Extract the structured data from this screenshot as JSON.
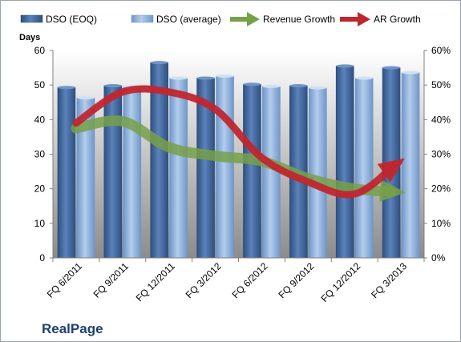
{
  "chart_data": {
    "type": "bar",
    "title": "",
    "company": "RealPage",
    "ylabel": "Days",
    "ylim": [
      0,
      60
    ],
    "y_ticks": [
      "0",
      "10",
      "20",
      "30",
      "40",
      "50",
      "60"
    ],
    "y2lim": [
      0,
      0.6
    ],
    "y2_ticks": [
      "0%",
      "10%",
      "20%",
      "30%",
      "40%",
      "50%",
      "60%"
    ],
    "categories": [
      "FQ 6/2011",
      "FQ 9/2011",
      "FQ 12/2011",
      "FQ 3/2012",
      "FQ 6/2012",
      "FQ 9/2012",
      "FQ 12/2012",
      "FQ 3/2013"
    ],
    "series": [
      {
        "name": "DSO (EOQ)",
        "kind": "bar",
        "color": "#4a6fa5",
        "values": [
          49.3,
          49.8,
          56.5,
          52.0,
          50.2,
          49.8,
          55.5,
          55.0
        ]
      },
      {
        "name": "DSO (average)",
        "kind": "bar",
        "color": "#8fb4e3",
        "values": [
          46.3,
          49.5,
          52.0,
          52.6,
          49.6,
          49.2,
          52.0,
          53.6
        ]
      },
      {
        "name": "Revenue Growth",
        "kind": "arrow-line",
        "axis": "secondary",
        "color": "#77a04a",
        "values": [
          0.375,
          0.395,
          0.32,
          0.295,
          0.28,
          0.23,
          0.2,
          0.19
        ]
      },
      {
        "name": "AR Growth",
        "kind": "arrow-line",
        "axis": "secondary",
        "color": "#c0262f",
        "values": [
          0.39,
          0.48,
          0.48,
          0.43,
          0.29,
          0.22,
          0.185,
          0.28
        ]
      }
    ],
    "legend": "top",
    "grid": false
  }
}
